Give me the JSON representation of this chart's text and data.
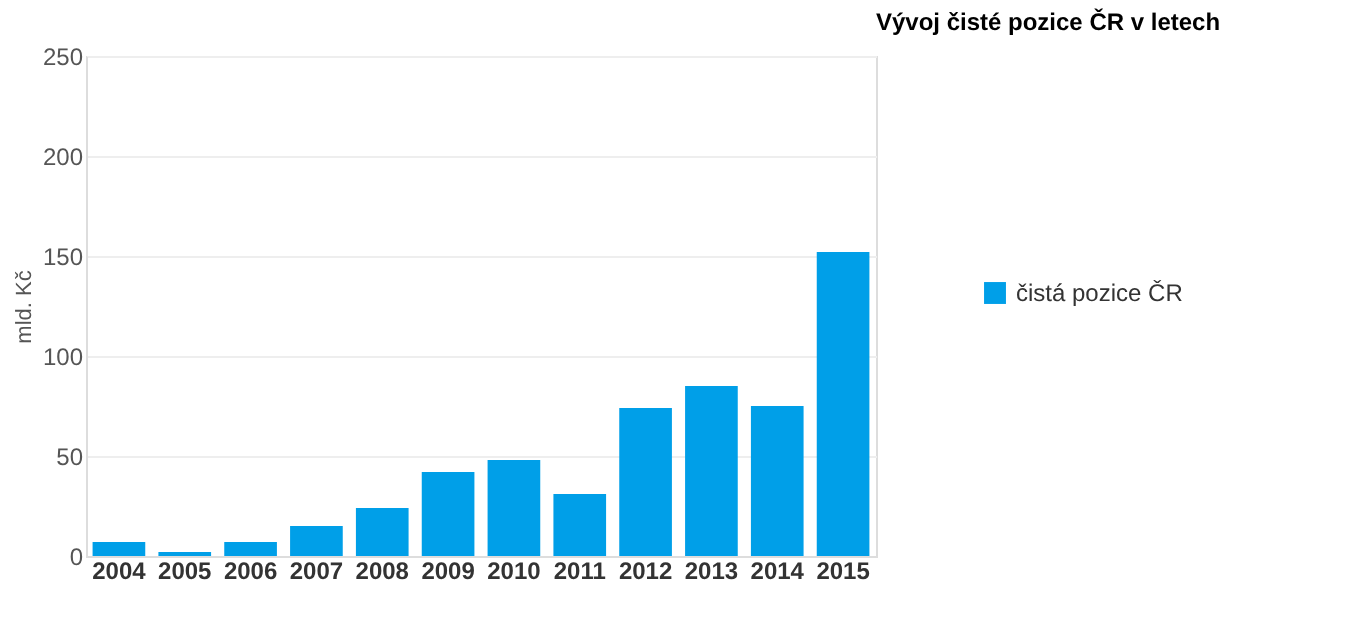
{
  "chart_data": {
    "type": "bar",
    "title": "Vývoj čisté pozice ČR v letech",
    "ylabel": "mld. Kč",
    "categories": [
      "2004",
      "2005",
      "2006",
      "2007",
      "2008",
      "2009",
      "2010",
      "2011",
      "2012",
      "2013",
      "2014",
      "2015"
    ],
    "series": [
      {
        "name": "čistá pozice ČR",
        "color": "#009fe8",
        "values": [
          7,
          2,
          7,
          15,
          24,
          42,
          48,
          31,
          74,
          85,
          75,
          152
        ]
      }
    ],
    "ylim": [
      0,
      250
    ],
    "yticks": [
      0,
      50,
      100,
      150,
      200,
      250
    ],
    "grid": "y",
    "legend": "right"
  }
}
